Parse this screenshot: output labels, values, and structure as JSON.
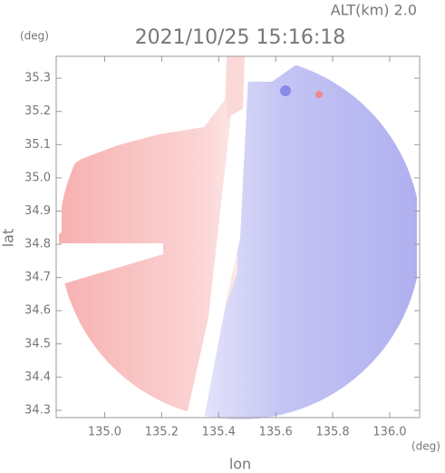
{
  "chart_data": {
    "type": "radar-map",
    "title": "2021/10/25 15:16:18",
    "subtitle": "ALT(km) 2.0",
    "y_unit": "(deg)",
    "x_unit": "(deg)",
    "ylabel": "lat",
    "xlabel": "lon",
    "xlim": [
      134.83,
      136.105
    ],
    "ylim": [
      34.278,
      35.366
    ],
    "xticks": [
      {
        "value": 135.0,
        "label": "135.0"
      },
      135.2,
      135.4,
      135.6,
      135.8,
      {
        "value": 136.0,
        "label": "136.0"
      }
    ],
    "yticks": [
      {
        "value": 34.3,
        "label": "34.3"
      },
      34.4,
      34.5,
      34.6,
      34.7,
      34.8,
      34.9,
      {
        "value": 35.0,
        "label": "35.0"
      },
      35.1,
      35.2,
      35.3
    ]
  }
}
